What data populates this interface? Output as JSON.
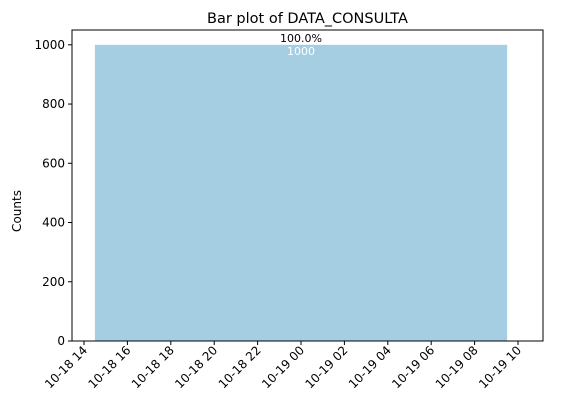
{
  "chart_data": {
    "type": "bar",
    "title": "Bar plot of DATA_CONSULTA",
    "xlabel": "",
    "ylabel": "Counts",
    "bar_color": "#a6cee3",
    "x_ticks": [
      "10-18 14",
      "10-18 16",
      "10-18 18",
      "10-18 20",
      "10-18 22",
      "10-19 00",
      "10-19 02",
      "10-19 04",
      "10-19 06",
      "10-19 08",
      "10-19 10"
    ],
    "y_ticks": [
      0,
      200,
      400,
      600,
      800,
      1000
    ],
    "ylim": [
      0,
      1050
    ],
    "bars": [
      {
        "x_start": "10-18 14:30",
        "x_end": "10-19 09:30",
        "value": 1000,
        "percent_label": "100.0%",
        "count_label": "1000"
      }
    ],
    "grid": false,
    "legend": "none"
  }
}
